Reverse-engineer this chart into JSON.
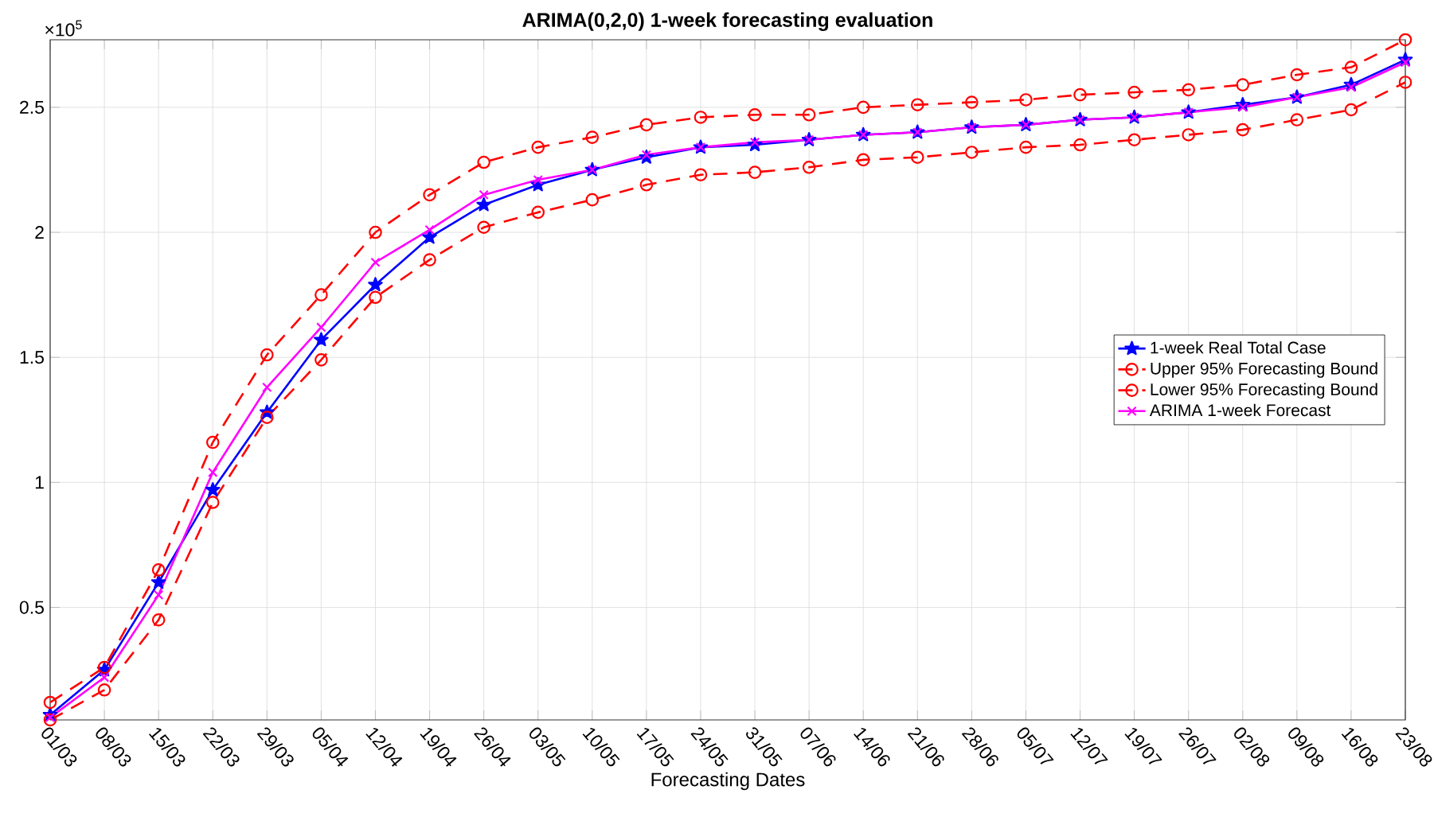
{
  "chart_data": {
    "type": "line",
    "title": "ARIMA(0,2,0) 1-week forecasting evaluation",
    "xlabel": "Forecasting Dates",
    "annotations": [
      "×10$^{5}$"
    ],
    "categories": [
      "01/03",
      "08/03",
      "15/03",
      "22/03",
      "29/03",
      "05/04",
      "12/04",
      "19/04",
      "26/04",
      "03/05",
      "10/05",
      "17/05",
      "24/05",
      "31/05",
      "07/06",
      "14/06",
      "21/06",
      "28/06",
      "05/07",
      "12/07",
      "19/07",
      "26/07",
      "02/08",
      "09/08",
      "16/08",
      "23/08"
    ],
    "ylim": [
      0.05,
      2.77
    ],
    "yticks": [
      0.5,
      1,
      1.5,
      2,
      2.5
    ],
    "grid": true,
    "legend": "right",
    "series": [
      {
        "name": "1-week Real Total Case",
        "color": "#0000ff",
        "marker": "star",
        "line_style": "solid",
        "values": [
          0.07,
          0.25,
          0.6,
          0.97,
          1.28,
          1.57,
          1.79,
          1.98,
          2.11,
          2.19,
          2.25,
          2.3,
          2.34,
          2.35,
          2.37,
          2.39,
          2.4,
          2.42,
          2.43,
          2.45,
          2.46,
          2.48,
          2.51,
          2.54,
          2.59,
          2.69
        ]
      },
      {
        "name": "Upper 95% Forecasting Bound",
        "color": "#ff0000",
        "marker": "circle",
        "line_style": "dashed",
        "values": [
          0.12,
          0.26,
          0.65,
          1.16,
          1.51,
          1.75,
          2.0,
          2.15,
          2.28,
          2.34,
          2.38,
          2.43,
          2.46,
          2.47,
          2.47,
          2.5,
          2.51,
          2.52,
          2.53,
          2.55,
          2.56,
          2.57,
          2.59,
          2.63,
          2.66,
          2.77
        ]
      },
      {
        "name": "Lower 95% Forecasting Bound",
        "color": "#ff0000",
        "marker": "circle",
        "line_style": "dashed",
        "values": [
          0.05,
          0.17,
          0.45,
          0.92,
          1.26,
          1.49,
          1.74,
          1.89,
          2.02,
          2.08,
          2.13,
          2.19,
          2.23,
          2.24,
          2.26,
          2.29,
          2.3,
          2.32,
          2.34,
          2.35,
          2.37,
          2.39,
          2.41,
          2.45,
          2.49,
          2.6
        ]
      },
      {
        "name": "ARIMA 1-week Forecast",
        "color": "#ff00ff",
        "marker": "cross",
        "line_style": "solid",
        "values": [
          0.06,
          0.22,
          0.55,
          1.04,
          1.38,
          1.62,
          1.88,
          2.01,
          2.15,
          2.21,
          2.25,
          2.31,
          2.34,
          2.36,
          2.37,
          2.39,
          2.4,
          2.42,
          2.43,
          2.45,
          2.46,
          2.48,
          2.5,
          2.54,
          2.58,
          2.68
        ]
      }
    ]
  }
}
